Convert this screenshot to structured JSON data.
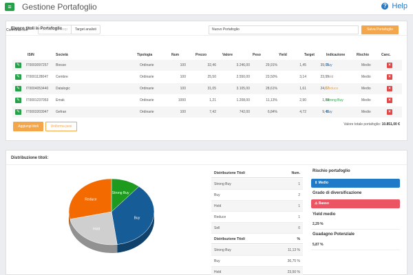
{
  "app": {
    "title": "Gestione Portafoglio",
    "help": "Help",
    "menu_icon": "menu-icon"
  },
  "list_panel": {
    "title": "Elenco titoli in Portafoglio",
    "compare_label": "Confronta con",
    "toggles": [
      "Consensus Borp",
      "Target analisti"
    ],
    "portfolio_name": "Nuovo Portafoglio",
    "save_label": "Salva Portafoglio",
    "headers": [
      "ISIN",
      "Società",
      "Tipologia",
      "Num",
      "Prezzo",
      "Valore",
      "Peso",
      "Yield",
      "Target",
      "Indicazione",
      "Rischio",
      "Canc."
    ],
    "rows": [
      {
        "isin": "IT0003097257",
        "company": "Biesse",
        "type": "Ordinarie",
        "num": "100",
        "price": "32,46",
        "value": "3.246,00",
        "weight": "29,91%",
        "yield": "1,45",
        "target": "39,05",
        "indication": "Buy",
        "risk": "Medio"
      },
      {
        "isin": "IT0001128047",
        "company": "Cembre",
        "type": "Ordinarie",
        "num": "100",
        "price": "25,50",
        "value": "2.550,00",
        "weight": "23,50%",
        "yield": "3,14",
        "target": "23,99",
        "indication": "Hold",
        "risk": "Medio"
      },
      {
        "isin": "IT0004053440",
        "company": "Datalogic",
        "type": "Ordinarie",
        "num": "100",
        "price": "31,05",
        "value": "3.105,00",
        "weight": "28,61%",
        "yield": "1,61",
        "target": "24,07",
        "indication": "Reduce",
        "risk": "Medio"
      },
      {
        "isin": "IT0001237053",
        "company": "Emak",
        "type": "Ordinarie",
        "num": "1000",
        "price": "1,21",
        "value": "1.208,00",
        "weight": "11,13%",
        "yield": "2,90",
        "target": "1,84",
        "indication": "Strong Buy",
        "risk": "Medio"
      },
      {
        "isin": "IT0003203947",
        "company": "Gefran",
        "type": "Ordinarie",
        "num": "100",
        "price": "7,42",
        "value": "742,00",
        "weight": "6,84%",
        "yield": "4,72",
        "target": "9,40",
        "indication": "Buy",
        "risk": "Medio"
      }
    ],
    "add_label": "Aggiungi titoli",
    "even_label": "Uniforma pesi",
    "total_label": "Valore totale portafoglio:",
    "total_value": "10.851,00 €"
  },
  "dist_panel": {
    "title": "Distribuzione titoli:",
    "table1": {
      "headers": [
        "Distribuzione Titoli",
        "Num."
      ],
      "rows": [
        [
          "Strong Buy",
          "1"
        ],
        [
          "Buy",
          "2"
        ],
        [
          "Hold",
          "1"
        ],
        [
          "Reduce",
          "1"
        ],
        [
          "Sell",
          "0"
        ]
      ]
    },
    "table2": {
      "headers": [
        "Distribuzione Titoli",
        "%"
      ],
      "rows": [
        [
          "Strong Buy",
          "11,13 %"
        ],
        [
          "Buy",
          "36,75 %"
        ],
        [
          "Hold",
          "23,50 %"
        ]
      ]
    },
    "side": {
      "risk_title": "Rischio portafoglio",
      "risk_value": "⇕ Medio",
      "div_title": "Grado di diversificazione",
      "div_value": "⚠ Basso",
      "yield_title": "Yield medio",
      "yield_value": "2,29 %",
      "gain_title": "Guadagno Potenziale",
      "gain_value": "5,87 %"
    }
  },
  "colors": {
    "green": "#27a04a",
    "orange": "#f4a64a",
    "red": "#e34848",
    "blue": "#2a78c1",
    "buy": "#2a78c1",
    "hold": "#999999",
    "reduce": "#f4a64a",
    "strong_buy": "#27a04a"
  },
  "chart_data": {
    "type": "pie",
    "categories": [
      "Strong Buy",
      "Buy",
      "Hold",
      "Reduce"
    ],
    "values": [
      11.13,
      36.75,
      23.5,
      28.61
    ],
    "colors": [
      "#1e9a1e",
      "#165d98",
      "#cfcfcf",
      "#f26a00"
    ]
  }
}
